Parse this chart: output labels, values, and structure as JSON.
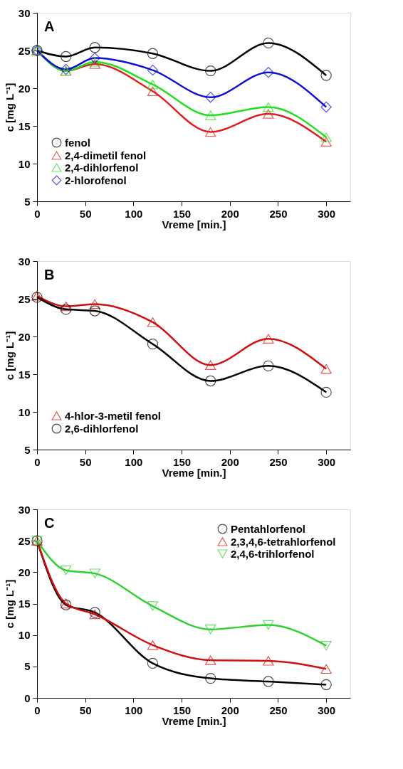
{
  "chart_data": [
    {
      "type": "line",
      "annotations": [
        "A"
      ],
      "xlabel": "Vreme [min.]",
      "ylabel": "c [mg L⁻¹]",
      "xlim": [
        0,
        325
      ],
      "ylim": [
        5,
        30
      ],
      "xticks": [
        0,
        50,
        100,
        150,
        200,
        250,
        300
      ],
      "yticks": [
        5,
        10,
        15,
        20,
        25,
        30
      ],
      "grid": false,
      "legend": "bottom left",
      "x": [
        0,
        30,
        60,
        120,
        180,
        240,
        300
      ],
      "series": [
        {
          "name": "fenol",
          "color": "#000000",
          "marker": "circle",
          "values": [
            25,
            24.2,
            25.4,
            24.6,
            22.3,
            26,
            21.7
          ]
        },
        {
          "name": "2,4-dimetil fenol",
          "color": "#e02020",
          "marker": "triangle",
          "values": [
            25,
            22.3,
            23.2,
            19.6,
            14.2,
            16.6,
            12.9
          ]
        },
        {
          "name": "2,4-dihlorfenol",
          "color": "#20e020",
          "marker": "triangle",
          "values": [
            25,
            22.3,
            23.5,
            20.5,
            16.4,
            17.5,
            13.5
          ]
        },
        {
          "name": "2-hlorofenol",
          "color": "#1010d0",
          "marker": "diamond",
          "values": [
            25,
            22.5,
            24.0,
            22.4,
            18.8,
            22.1,
            17.5
          ]
        }
      ]
    },
    {
      "type": "line",
      "annotations": [
        "B"
      ],
      "xlabel": "Vreme [min.]",
      "ylabel": "c [mg L⁻¹]",
      "xlim": [
        0,
        325
      ],
      "ylim": [
        5,
        30
      ],
      "xticks": [
        0,
        50,
        100,
        150,
        200,
        250,
        300
      ],
      "yticks": [
        5,
        10,
        15,
        20,
        25,
        30
      ],
      "grid": false,
      "legend": "bottom left",
      "x": [
        0,
        30,
        60,
        120,
        180,
        240,
        300
      ],
      "series": [
        {
          "name": "4-hlor-3-metil fenol",
          "color": "#d01010",
          "marker": "triangle",
          "values": [
            25.4,
            24.0,
            24.3,
            21.9,
            16.2,
            19.7,
            15.7
          ]
        },
        {
          "name": "2,6-dihlorfenol",
          "color": "#000000",
          "marker": "circle",
          "values": [
            25.2,
            23.6,
            23.4,
            19.0,
            14.1,
            16.1,
            12.6
          ]
        }
      ]
    },
    {
      "type": "line",
      "annotations": [
        "C"
      ],
      "xlabel": "Vreme [min.]",
      "ylabel": "c [mg L⁻¹]",
      "xlim": [
        0,
        325
      ],
      "ylim": [
        0,
        30
      ],
      "xticks": [
        0,
        50,
        100,
        150,
        200,
        250,
        300
      ],
      "yticks": [
        0,
        5,
        10,
        15,
        20,
        25,
        30
      ],
      "grid": false,
      "legend": "top right",
      "x": [
        0,
        30,
        60,
        120,
        180,
        240,
        300
      ],
      "series": [
        {
          "name": "Pentahlorfenol",
          "color": "#000000",
          "marker": "circle",
          "values": [
            25,
            14.8,
            13.6,
            5.5,
            3.1,
            2.6,
            2.1
          ]
        },
        {
          "name": "2,3,4,6-tetrahlorfenol",
          "color": "#d01010",
          "marker": "triangle",
          "values": [
            25,
            15,
            13.3,
            8.4,
            6,
            5.9,
            4.6
          ]
        },
        {
          "name": "2,4,6-trihlorfenol",
          "color": "#30d030",
          "marker": "triangle-down",
          "values": [
            25,
            20.3,
            19.8,
            14.6,
            10.9,
            11.6,
            8.3
          ]
        }
      ]
    }
  ]
}
